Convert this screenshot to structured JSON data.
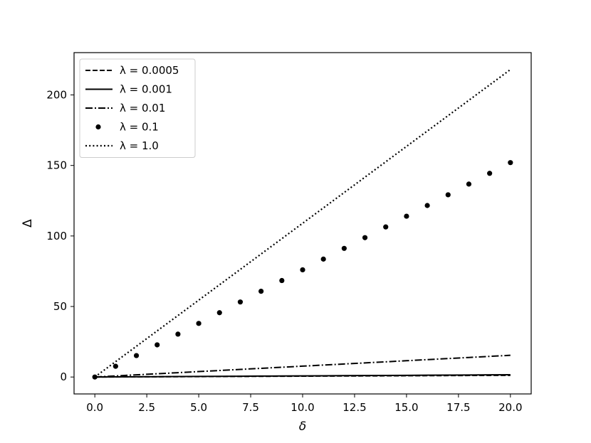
{
  "chart_data": {
    "type": "line",
    "title": "",
    "xlabel": "δ",
    "ylabel": "Δ",
    "xlim": [
      -1.0,
      21.0
    ],
    "ylim": [
      -12.0,
      230.0
    ],
    "xticks": [
      0.0,
      2.5,
      5.0,
      7.5,
      10.0,
      12.5,
      15.0,
      17.5,
      20.0
    ],
    "xtick_labels": [
      "0.0",
      "2.5",
      "5.0",
      "7.5",
      "10.0",
      "12.5",
      "15.0",
      "17.5",
      "20.0"
    ],
    "yticks": [
      0,
      50,
      100,
      150,
      200
    ],
    "ytick_labels": [
      "0",
      "50",
      "100",
      "150",
      "200"
    ],
    "grid": false,
    "legend_position": "upper left",
    "x": [
      0,
      1,
      2,
      3,
      4,
      5,
      6,
      7,
      8,
      9,
      10,
      11,
      12,
      13,
      14,
      15,
      16,
      17,
      18,
      19,
      20
    ],
    "series": [
      {
        "name": "λ = 0.0005",
        "style": "dashed",
        "color": "#000000",
        "values": [
          0,
          0.06,
          0.12,
          0.18,
          0.24,
          0.3,
          0.36,
          0.42,
          0.48,
          0.54,
          0.6,
          0.66,
          0.72,
          0.78,
          0.84,
          0.9,
          0.96,
          1.02,
          1.08,
          1.14,
          1.2
        ]
      },
      {
        "name": "λ = 0.001",
        "style": "solid",
        "color": "#000000",
        "values": [
          0,
          0.08,
          0.16,
          0.24,
          0.32,
          0.4,
          0.48,
          0.56,
          0.64,
          0.72,
          0.8,
          0.88,
          0.96,
          1.04,
          1.12,
          1.2,
          1.28,
          1.36,
          1.44,
          1.52,
          1.6
        ]
      },
      {
        "name": "λ = 0.01",
        "style": "dashdot",
        "color": "#000000",
        "values": [
          0,
          0.77,
          1.54,
          2.31,
          3.08,
          3.85,
          4.62,
          5.39,
          6.16,
          6.93,
          7.7,
          8.47,
          9.24,
          10.01,
          10.78,
          11.55,
          12.32,
          13.09,
          13.86,
          14.63,
          15.4
        ]
      },
      {
        "name": "λ = 0.1",
        "style": "dots",
        "color": "#000000",
        "values": [
          0,
          7.6,
          15.2,
          22.8,
          30.4,
          38.0,
          45.6,
          53.2,
          60.8,
          68.4,
          76.0,
          83.6,
          91.2,
          98.8,
          106.4,
          114.0,
          121.6,
          129.2,
          136.8,
          144.4,
          152.0
        ]
      },
      {
        "name": "λ = 1.0",
        "style": "dotted",
        "color": "#000000",
        "values": [
          0,
          10.9,
          21.8,
          32.7,
          43.6,
          54.5,
          65.4,
          76.3,
          87.2,
          98.1,
          109.0,
          119.9,
          130.8,
          141.7,
          152.6,
          163.5,
          174.4,
          185.3,
          196.2,
          207.1,
          218.0
        ]
      }
    ]
  }
}
